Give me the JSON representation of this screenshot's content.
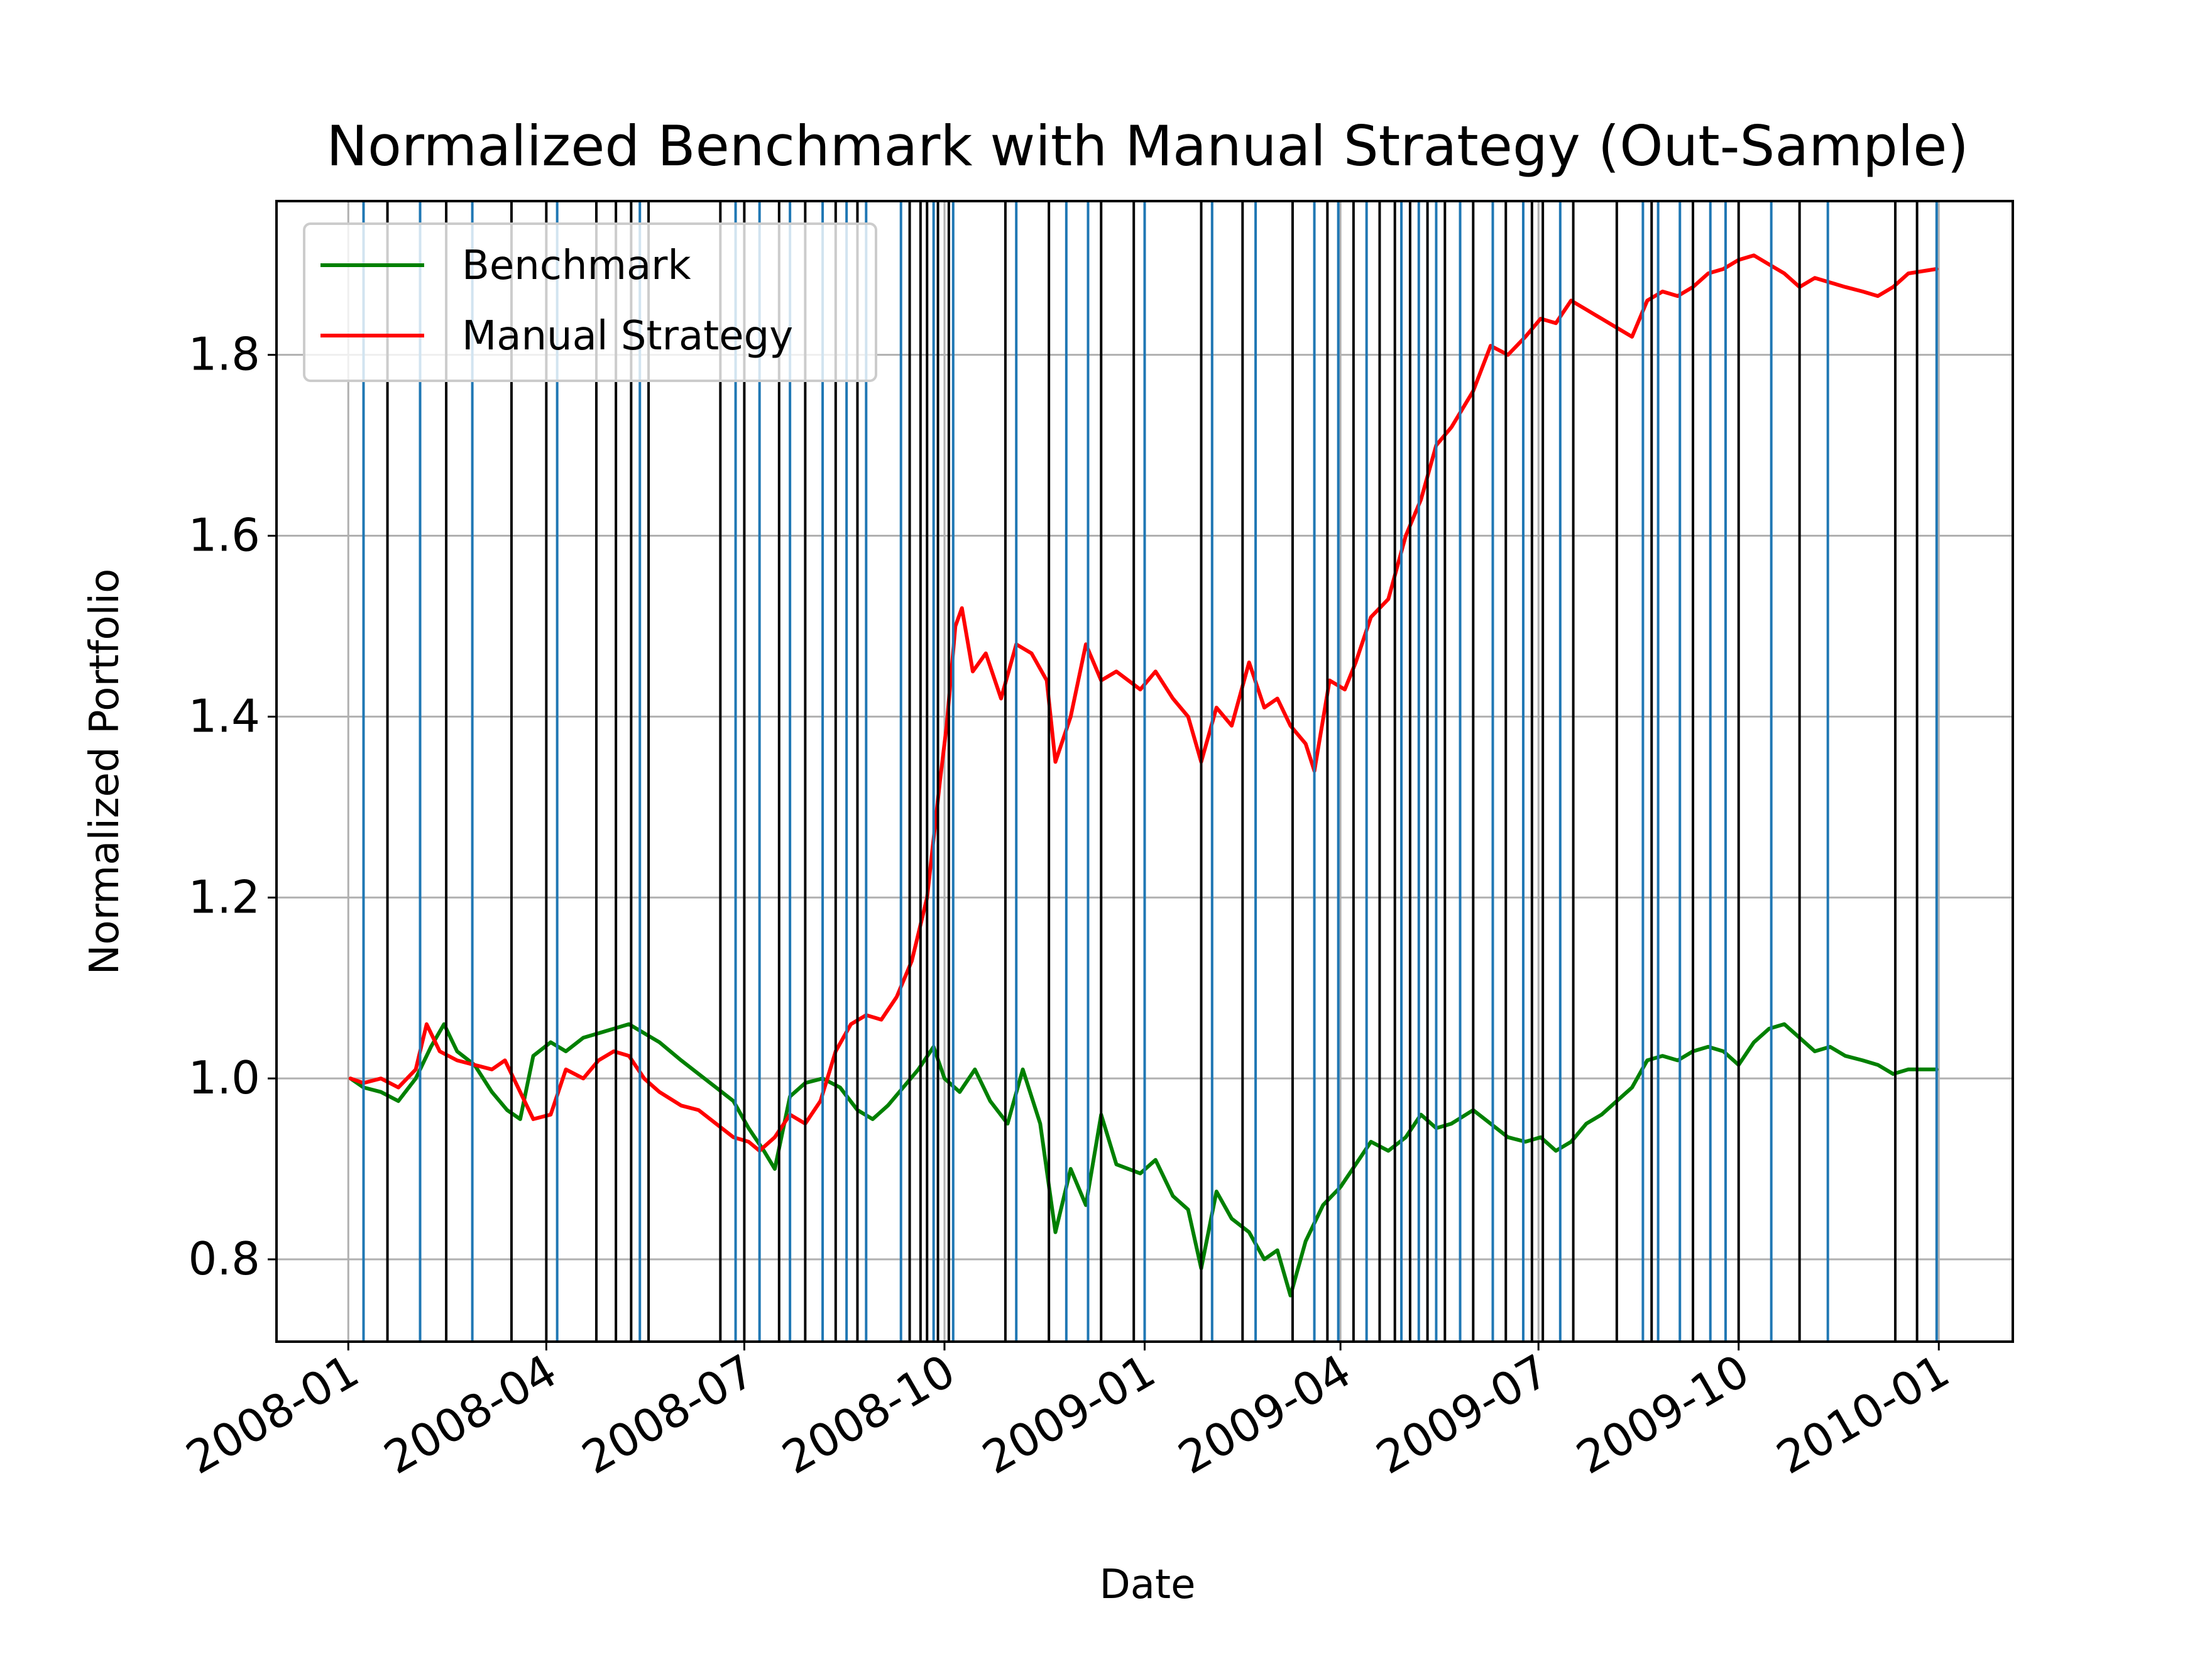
{
  "chart_data": {
    "type": "line",
    "title": "Normalized Benchmark with Manual Strategy (Out-Sample)",
    "xlabel": "Date",
    "ylabel": "Normalized Portfolio",
    "x_ticks": [
      "2008-01",
      "2008-04",
      "2008-07",
      "2008-10",
      "2009-01",
      "2009-04",
      "2009-07",
      "2009-10",
      "2010-01"
    ],
    "y_ticks": [
      "0.8",
      "1.0",
      "1.2",
      "1.4",
      "1.6",
      "1.8"
    ],
    "xlim": [
      "2007-11-29",
      "2010-02-04"
    ],
    "ylim": [
      0.709,
      1.97
    ],
    "grid": true,
    "legend_position": "upper left",
    "series": [
      {
        "name": "Benchmark",
        "color": "#008000",
        "points": [
          [
            "2008-01-02",
            1.0
          ],
          [
            "2008-01-08",
            0.99
          ],
          [
            "2008-01-16",
            0.985
          ],
          [
            "2008-01-24",
            0.975
          ],
          [
            "2008-02-01",
            1.0
          ],
          [
            "2008-02-08",
            1.035
          ],
          [
            "2008-02-14",
            1.06
          ],
          [
            "2008-02-20",
            1.03
          ],
          [
            "2008-02-28",
            1.015
          ],
          [
            "2008-03-07",
            0.985
          ],
          [
            "2008-03-14",
            0.965
          ],
          [
            "2008-03-20",
            0.955
          ],
          [
            "2008-03-26",
            1.025
          ],
          [
            "2008-04-03",
            1.04
          ],
          [
            "2008-04-10",
            1.03
          ],
          [
            "2008-04-18",
            1.045
          ],
          [
            "2008-04-25",
            1.05
          ],
          [
            "2008-05-02",
            1.055
          ],
          [
            "2008-05-09",
            1.06
          ],
          [
            "2008-05-16",
            1.05
          ],
          [
            "2008-05-23",
            1.04
          ],
          [
            "2008-06-02",
            1.02
          ],
          [
            "2008-06-10",
            1.005
          ],
          [
            "2008-06-18",
            0.99
          ],
          [
            "2008-06-26",
            0.975
          ],
          [
            "2008-07-03",
            0.945
          ],
          [
            "2008-07-10",
            0.92
          ],
          [
            "2008-07-15",
            0.9
          ],
          [
            "2008-07-22",
            0.98
          ],
          [
            "2008-07-29",
            0.995
          ],
          [
            "2008-08-06",
            1.0
          ],
          [
            "2008-08-14",
            0.99
          ],
          [
            "2008-08-22",
            0.965
          ],
          [
            "2008-08-29",
            0.955
          ],
          [
            "2008-09-05",
            0.97
          ],
          [
            "2008-09-12",
            0.99
          ],
          [
            "2008-09-19",
            1.01
          ],
          [
            "2008-09-26",
            1.035
          ],
          [
            "2008-10-01",
            1.0
          ],
          [
            "2008-10-08",
            0.985
          ],
          [
            "2008-10-15",
            1.01
          ],
          [
            "2008-10-22",
            0.975
          ],
          [
            "2008-10-30",
            0.95
          ],
          [
            "2008-11-06",
            1.01
          ],
          [
            "2008-11-14",
            0.95
          ],
          [
            "2008-11-21",
            0.83
          ],
          [
            "2008-11-28",
            0.9
          ],
          [
            "2008-12-05",
            0.86
          ],
          [
            "2008-12-12",
            0.96
          ],
          [
            "2008-12-19",
            0.905
          ],
          [
            "2008-12-30",
            0.895
          ],
          [
            "2009-01-06",
            0.91
          ],
          [
            "2009-01-14",
            0.87
          ],
          [
            "2009-01-21",
            0.855
          ],
          [
            "2009-01-27",
            0.79
          ],
          [
            "2009-02-03",
            0.875
          ],
          [
            "2009-02-10",
            0.845
          ],
          [
            "2009-02-18",
            0.83
          ],
          [
            "2009-02-25",
            0.8
          ],
          [
            "2009-03-03",
            0.81
          ],
          [
            "2009-03-09",
            0.76
          ],
          [
            "2009-03-16",
            0.82
          ],
          [
            "2009-03-24",
            0.86
          ],
          [
            "2009-04-01",
            0.88
          ],
          [
            "2009-04-08",
            0.905
          ],
          [
            "2009-04-15",
            0.93
          ],
          [
            "2009-04-23",
            0.92
          ],
          [
            "2009-05-01",
            0.935
          ],
          [
            "2009-05-08",
            0.96
          ],
          [
            "2009-05-15",
            0.945
          ],
          [
            "2009-05-22",
            0.95
          ],
          [
            "2009-06-01",
            0.965
          ],
          [
            "2009-06-09",
            0.95
          ],
          [
            "2009-06-17",
            0.935
          ],
          [
            "2009-06-25",
            0.93
          ],
          [
            "2009-07-02",
            0.935
          ],
          [
            "2009-07-09",
            0.92
          ],
          [
            "2009-07-16",
            0.93
          ],
          [
            "2009-07-23",
            0.95
          ],
          [
            "2009-07-30",
            0.96
          ],
          [
            "2009-08-06",
            0.975
          ],
          [
            "2009-08-13",
            0.99
          ],
          [
            "2009-08-20",
            1.02
          ],
          [
            "2009-08-27",
            1.025
          ],
          [
            "2009-09-03",
            1.02
          ],
          [
            "2009-09-10",
            1.03
          ],
          [
            "2009-09-17",
            1.035
          ],
          [
            "2009-09-24",
            1.03
          ],
          [
            "2009-10-01",
            1.015
          ],
          [
            "2009-10-08",
            1.04
          ],
          [
            "2009-10-15",
            1.055
          ],
          [
            "2009-10-22",
            1.06
          ],
          [
            "2009-10-29",
            1.045
          ],
          [
            "2009-11-05",
            1.03
          ],
          [
            "2009-11-12",
            1.035
          ],
          [
            "2009-11-19",
            1.025
          ],
          [
            "2009-11-27",
            1.02
          ],
          [
            "2009-12-04",
            1.015
          ],
          [
            "2009-12-11",
            1.005
          ],
          [
            "2009-12-18",
            1.01
          ],
          [
            "2009-12-31",
            1.01
          ]
        ]
      },
      {
        "name": "Manual Strategy",
        "color": "#ff0000",
        "points": [
          [
            "2008-01-02",
            1.0
          ],
          [
            "2008-01-08",
            0.995
          ],
          [
            "2008-01-16",
            1.0
          ],
          [
            "2008-01-24",
            0.99
          ],
          [
            "2008-02-01",
            1.01
          ],
          [
            "2008-02-06",
            1.06
          ],
          [
            "2008-02-12",
            1.03
          ],
          [
            "2008-02-20",
            1.02
          ],
          [
            "2008-02-28",
            1.015
          ],
          [
            "2008-03-07",
            1.01
          ],
          [
            "2008-03-13",
            1.02
          ],
          [
            "2008-03-20",
            0.985
          ],
          [
            "2008-03-26",
            0.955
          ],
          [
            "2008-04-03",
            0.96
          ],
          [
            "2008-04-10",
            1.01
          ],
          [
            "2008-04-18",
            1.0
          ],
          [
            "2008-04-25",
            1.02
          ],
          [
            "2008-05-02",
            1.03
          ],
          [
            "2008-05-09",
            1.025
          ],
          [
            "2008-05-16",
            1.0
          ],
          [
            "2008-05-23",
            0.985
          ],
          [
            "2008-06-02",
            0.97
          ],
          [
            "2008-06-10",
            0.965
          ],
          [
            "2008-06-18",
            0.95
          ],
          [
            "2008-06-26",
            0.935
          ],
          [
            "2008-07-03",
            0.93
          ],
          [
            "2008-07-08",
            0.92
          ],
          [
            "2008-07-15",
            0.935
          ],
          [
            "2008-07-22",
            0.96
          ],
          [
            "2008-07-29",
            0.95
          ],
          [
            "2008-08-05",
            0.975
          ],
          [
            "2008-08-12",
            1.03
          ],
          [
            "2008-08-19",
            1.06
          ],
          [
            "2008-08-26",
            1.07
          ],
          [
            "2008-09-02",
            1.065
          ],
          [
            "2008-09-09",
            1.09
          ],
          [
            "2008-09-16",
            1.13
          ],
          [
            "2008-09-23",
            1.2
          ],
          [
            "2008-09-29",
            1.33
          ],
          [
            "2008-10-02",
            1.39
          ],
          [
            "2008-10-06",
            1.5
          ],
          [
            "2008-10-09",
            1.52
          ],
          [
            "2008-10-14",
            1.45
          ],
          [
            "2008-10-20",
            1.47
          ],
          [
            "2008-10-27",
            1.42
          ],
          [
            "2008-11-03",
            1.48
          ],
          [
            "2008-11-10",
            1.47
          ],
          [
            "2008-11-17",
            1.44
          ],
          [
            "2008-11-21",
            1.35
          ],
          [
            "2008-11-28",
            1.4
          ],
          [
            "2008-12-05",
            1.48
          ],
          [
            "2008-12-12",
            1.44
          ],
          [
            "2008-12-19",
            1.45
          ],
          [
            "2008-12-30",
            1.43
          ],
          [
            "2009-01-06",
            1.45
          ],
          [
            "2009-01-14",
            1.42
          ],
          [
            "2009-01-21",
            1.4
          ],
          [
            "2009-01-27",
            1.35
          ],
          [
            "2009-02-03",
            1.41
          ],
          [
            "2009-02-10",
            1.39
          ],
          [
            "2009-02-18",
            1.46
          ],
          [
            "2009-02-25",
            1.41
          ],
          [
            "2009-03-03",
            1.42
          ],
          [
            "2009-03-09",
            1.39
          ],
          [
            "2009-03-16",
            1.37
          ],
          [
            "2009-03-20",
            1.34
          ],
          [
            "2009-03-27",
            1.44
          ],
          [
            "2009-04-03",
            1.43
          ],
          [
            "2009-04-08",
            1.46
          ],
          [
            "2009-04-15",
            1.51
          ],
          [
            "2009-04-23",
            1.53
          ],
          [
            "2009-05-01",
            1.6
          ],
          [
            "2009-05-08",
            1.64
          ],
          [
            "2009-05-15",
            1.7
          ],
          [
            "2009-05-22",
            1.72
          ],
          [
            "2009-06-01",
            1.76
          ],
          [
            "2009-06-09",
            1.81
          ],
          [
            "2009-06-17",
            1.8
          ],
          [
            "2009-06-25",
            1.82
          ],
          [
            "2009-07-02",
            1.84
          ],
          [
            "2009-07-09",
            1.835
          ],
          [
            "2009-07-16",
            1.86
          ],
          [
            "2009-07-23",
            1.85
          ],
          [
            "2009-07-30",
            1.84
          ],
          [
            "2009-08-06",
            1.83
          ],
          [
            "2009-08-13",
            1.82
          ],
          [
            "2009-08-20",
            1.86
          ],
          [
            "2009-08-27",
            1.87
          ],
          [
            "2009-09-03",
            1.865
          ],
          [
            "2009-09-10",
            1.875
          ],
          [
            "2009-09-17",
            1.89
          ],
          [
            "2009-09-24",
            1.895
          ],
          [
            "2009-10-01",
            1.905
          ],
          [
            "2009-10-08",
            1.91
          ],
          [
            "2009-10-15",
            1.9
          ],
          [
            "2009-10-22",
            1.89
          ],
          [
            "2009-10-29",
            1.875
          ],
          [
            "2009-11-05",
            1.885
          ],
          [
            "2009-11-12",
            1.88
          ],
          [
            "2009-11-19",
            1.875
          ],
          [
            "2009-11-27",
            1.87
          ],
          [
            "2009-12-04",
            1.865
          ],
          [
            "2009-12-11",
            1.875
          ],
          [
            "2009-12-18",
            1.89
          ],
          [
            "2009-12-31",
            1.895
          ]
        ]
      }
    ],
    "vertical_markers": {
      "black": [
        "2008-01-19",
        "2008-02-15",
        "2008-03-16",
        "2008-04-01",
        "2008-04-24",
        "2008-05-03",
        "2008-05-10",
        "2008-05-18",
        "2008-06-20",
        "2008-07-01",
        "2008-07-17",
        "2008-07-29",
        "2008-08-12",
        "2008-08-22",
        "2008-09-15",
        "2008-09-20",
        "2008-09-23",
        "2008-09-28",
        "2008-10-03",
        "2008-10-29",
        "2008-11-18",
        "2008-12-12",
        "2008-12-27",
        "2009-01-27",
        "2009-02-15",
        "2009-03-10",
        "2009-03-26",
        "2009-04-07",
        "2009-04-19",
        "2009-04-26",
        "2009-05-03",
        "2009-05-11",
        "2009-05-19",
        "2009-06-01",
        "2009-06-16",
        "2009-06-28",
        "2009-07-03",
        "2009-07-17",
        "2009-08-06",
        "2009-08-22",
        "2009-09-10",
        "2009-10-01",
        "2009-10-29",
        "2009-12-12",
        "2009-12-22"
      ],
      "blue": [
        "2008-01-08",
        "2008-02-03",
        "2008-02-27",
        "2008-04-06",
        "2008-05-14",
        "2008-06-27",
        "2008-07-08",
        "2008-07-22",
        "2008-08-06",
        "2008-08-17",
        "2008-08-26",
        "2008-09-11",
        "2008-09-26",
        "2008-10-05",
        "2008-11-03",
        "2008-11-26",
        "2008-12-06",
        "2009-01-01",
        "2009-02-01",
        "2009-02-21",
        "2009-03-20",
        "2009-03-31",
        "2009-04-13",
        "2009-04-29",
        "2009-05-07",
        "2009-05-15",
        "2009-05-26",
        "2009-06-10",
        "2009-06-24",
        "2009-07-11",
        "2009-08-18",
        "2009-08-25",
        "2009-09-04",
        "2009-09-18",
        "2009-09-25",
        "2009-10-16",
        "2009-11-11",
        "2009-12-31"
      ]
    }
  }
}
